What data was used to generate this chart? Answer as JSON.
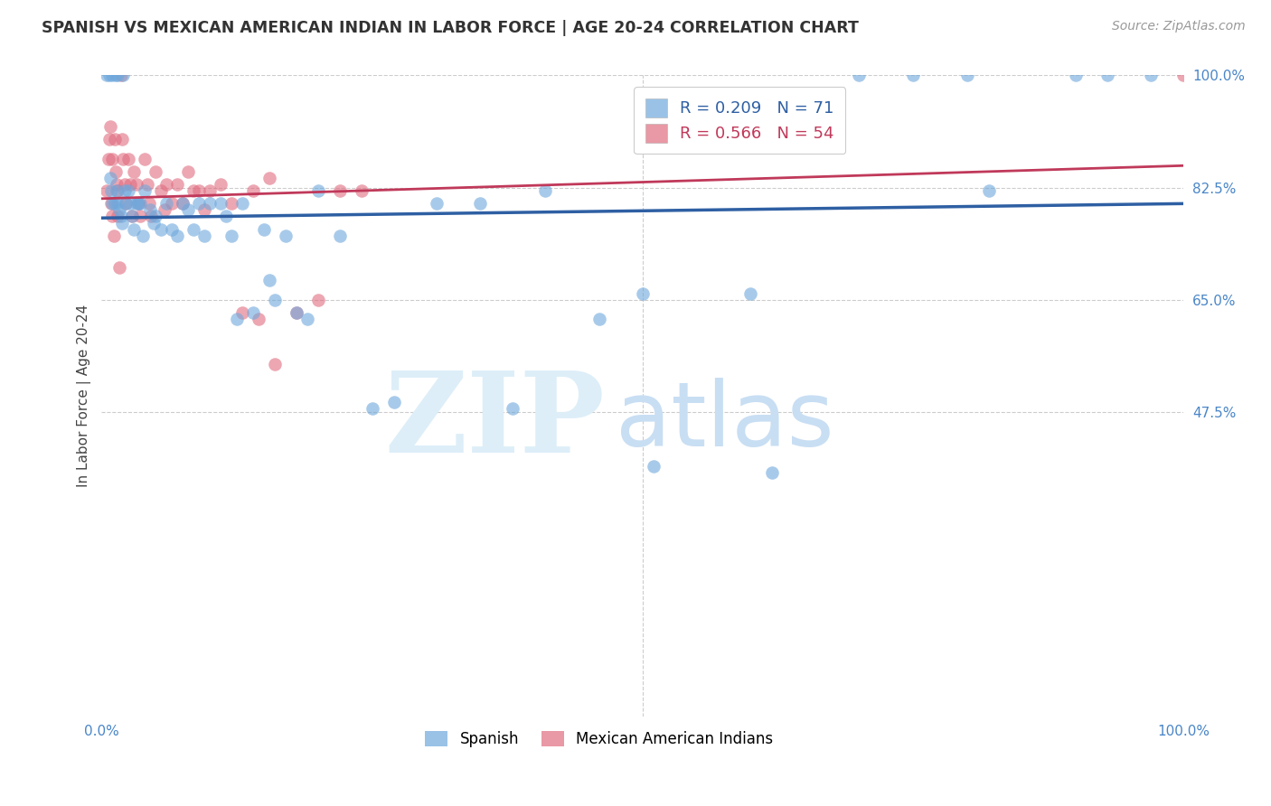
{
  "title": "SPANISH VS MEXICAN AMERICAN INDIAN IN LABOR FORCE | AGE 20-24 CORRELATION CHART",
  "source": "Source: ZipAtlas.com",
  "ylabel": "In Labor Force | Age 20-24",
  "xlim": [
    0.0,
    1.0
  ],
  "ylim": [
    0.0,
    1.0
  ],
  "blue_R": 0.209,
  "blue_N": 71,
  "pink_R": 0.566,
  "pink_N": 54,
  "blue_color": "#6fa8dc",
  "pink_color": "#e06c7f",
  "blue_line_color": "#2e5fa3",
  "pink_line_color": "#c0395a",
  "legend_blue_label": "Spanish",
  "legend_pink_label": "Mexican American Indians",
  "axis_color": "#4a86c8",
  "background_color": "#ffffff",
  "blue_x": [
    0.005,
    0.007,
    0.008,
    0.009,
    0.01,
    0.01,
    0.012,
    0.013,
    0.014,
    0.015,
    0.015,
    0.016,
    0.018,
    0.019,
    0.02,
    0.021,
    0.022,
    0.025,
    0.026,
    0.028,
    0.03,
    0.032,
    0.034,
    0.036,
    0.038,
    0.04,
    0.045,
    0.048,
    0.05,
    0.055,
    0.06,
    0.065,
    0.07,
    0.075,
    0.08,
    0.085,
    0.09,
    0.095,
    0.1,
    0.11,
    0.115,
    0.12,
    0.125,
    0.13,
    0.14,
    0.15,
    0.155,
    0.16,
    0.17,
    0.18,
    0.19,
    0.2,
    0.22,
    0.25,
    0.27,
    0.31,
    0.35,
    0.38,
    0.41,
    0.46,
    0.5,
    0.51,
    0.6,
    0.62,
    0.7,
    0.75,
    0.8,
    0.82,
    0.9,
    0.93,
    0.97
  ],
  "blue_y": [
    1.0,
    1.0,
    0.84,
    0.82,
    0.8,
    1.0,
    0.8,
    1.0,
    0.82,
    0.8,
    1.0,
    0.79,
    0.78,
    0.77,
    1.0,
    0.82,
    0.8,
    0.82,
    0.8,
    0.78,
    0.76,
    0.8,
    0.8,
    0.8,
    0.75,
    0.82,
    0.79,
    0.77,
    0.78,
    0.76,
    0.8,
    0.76,
    0.75,
    0.8,
    0.79,
    0.76,
    0.8,
    0.75,
    0.8,
    0.8,
    0.78,
    0.75,
    0.62,
    0.8,
    0.63,
    0.76,
    0.68,
    0.65,
    0.75,
    0.63,
    0.62,
    0.82,
    0.75,
    0.48,
    0.49,
    0.8,
    0.8,
    0.48,
    0.82,
    0.62,
    0.66,
    0.39,
    0.66,
    0.38,
    1.0,
    1.0,
    1.0,
    0.82,
    1.0,
    1.0,
    1.0
  ],
  "pink_x": [
    0.005,
    0.006,
    0.007,
    0.008,
    0.009,
    0.01,
    0.01,
    0.011,
    0.012,
    0.013,
    0.014,
    0.015,
    0.015,
    0.016,
    0.018,
    0.019,
    0.02,
    0.021,
    0.022,
    0.025,
    0.026,
    0.028,
    0.03,
    0.032,
    0.034,
    0.036,
    0.04,
    0.042,
    0.044,
    0.046,
    0.05,
    0.055,
    0.058,
    0.06,
    0.065,
    0.07,
    0.075,
    0.08,
    0.085,
    0.09,
    0.095,
    0.1,
    0.11,
    0.12,
    0.13,
    0.14,
    0.145,
    0.155,
    0.16,
    0.18,
    0.2,
    0.22,
    0.24,
    1.0
  ],
  "pink_y": [
    0.82,
    0.87,
    0.9,
    0.92,
    0.8,
    0.78,
    0.87,
    0.75,
    0.9,
    0.85,
    0.83,
    0.82,
    0.78,
    0.7,
    1.0,
    0.9,
    0.87,
    0.83,
    0.8,
    0.87,
    0.83,
    0.78,
    0.85,
    0.83,
    0.8,
    0.78,
    0.87,
    0.83,
    0.8,
    0.78,
    0.85,
    0.82,
    0.79,
    0.83,
    0.8,
    0.83,
    0.8,
    0.85,
    0.82,
    0.82,
    0.79,
    0.82,
    0.83,
    0.8,
    0.63,
    0.82,
    0.62,
    0.84,
    0.55,
    0.63,
    0.65,
    0.82,
    0.82,
    1.0
  ]
}
